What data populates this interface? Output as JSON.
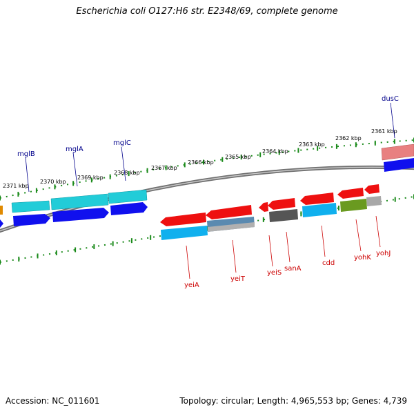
{
  "title": "Escherichia coli O127:H6 str. E2348/69, complete genome",
  "accession": "Accession: NC_011601",
  "summary": "Topology: circular; Length: 4,965,553 bp; Genes: 4,739",
  "ticks": [
    {
      "label": "2371 kbp"
    },
    {
      "label": "2370 kbp"
    },
    {
      "label": "2369 kbp"
    },
    {
      "label": "2368 kbp"
    },
    {
      "label": "2367 kbp"
    },
    {
      "label": "2366 kbp"
    },
    {
      "label": "2365 kbp"
    },
    {
      "label": "2364 kbp"
    },
    {
      "label": "2363 kbp"
    },
    {
      "label": "2362 kbp"
    },
    {
      "label": "2361 kbp"
    }
  ],
  "genes_top": [
    {
      "name": "mglB",
      "color": "#00008b"
    },
    {
      "name": "mglA",
      "color": "#00008b"
    },
    {
      "name": "mglC",
      "color": "#00008b"
    },
    {
      "name": "dusC",
      "color": "#00008b"
    }
  ],
  "genes_bottom": [
    {
      "name": "yeiA",
      "color": "#cc0000"
    },
    {
      "name": "yeiT",
      "color": "#cc0000"
    },
    {
      "name": "yeiS",
      "color": "#cc0000"
    },
    {
      "name": "sanA",
      "color": "#cc0000"
    },
    {
      "name": "cdd",
      "color": "#cc0000"
    },
    {
      "name": "yohK",
      "color": "#cc0000"
    },
    {
      "name": "yohJ",
      "color": "#cc0000"
    }
  ],
  "colors": {
    "backbone": "#8c8c8c",
    "tick": "#1a8a1a",
    "forward_cds": "#00c8d8",
    "forward_gene": "#0000ee",
    "reverse_cds": "#ee0000",
    "reverse_blue": "#00aaee"
  }
}
